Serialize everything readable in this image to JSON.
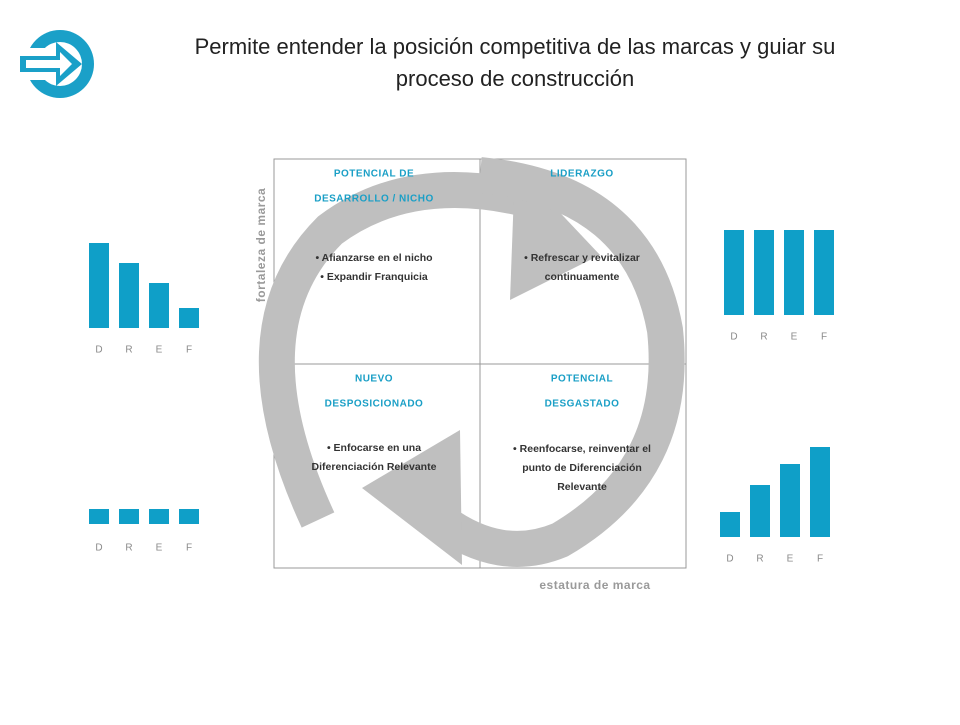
{
  "header": {
    "title_lines": [
      "Permite entender la posición competitiva de las marcas y guiar su",
      "proceso de construcción"
    ]
  },
  "axes": {
    "y_label": "fortaleza de marca",
    "x_label": "estatura de marca"
  },
  "quadrants": [
    {
      "title_lines": [
        "POTENCIAL DE",
        "DESARROLLO / NICHO"
      ],
      "bullets": [
        "Afianzarse en el nicho",
        "Expandir Franquicia"
      ]
    },
    {
      "title_lines": [
        "LIDERAZGO"
      ],
      "bullets": [
        "Refrescar y revitalizar continuamente"
      ]
    },
    {
      "title_lines": [
        "NUEVO",
        "DESPOSICIONADO"
      ],
      "bullets": [
        "Enfocarse en una Diferenciación Relevante"
      ]
    },
    {
      "title_lines": [
        "POTENCIAL",
        "DESGASTADO"
      ],
      "bullets": [
        "Reenfocarse, reinventar el punto de Diferenciación Relevante"
      ]
    }
  ],
  "charts": [
    {
      "type": "bar",
      "categories": [
        "D",
        "R",
        "E",
        "F"
      ],
      "values": [
        85,
        65,
        45,
        20
      ],
      "color": "#0f9fc8"
    },
    {
      "type": "bar",
      "categories": [
        "D",
        "R",
        "E",
        "F"
      ],
      "values": [
        85,
        85,
        85,
        85
      ],
      "color": "#0f9fc8"
    },
    {
      "type": "bar",
      "categories": [
        "D",
        "R",
        "E",
        "F"
      ],
      "values": [
        15,
        15,
        15,
        15
      ],
      "color": "#0f9fc8"
    },
    {
      "type": "bar",
      "categories": [
        "D",
        "R",
        "E",
        "F"
      ],
      "values": [
        25,
        52,
        73,
        90
      ],
      "color": "#0f9fc8"
    }
  ]
}
